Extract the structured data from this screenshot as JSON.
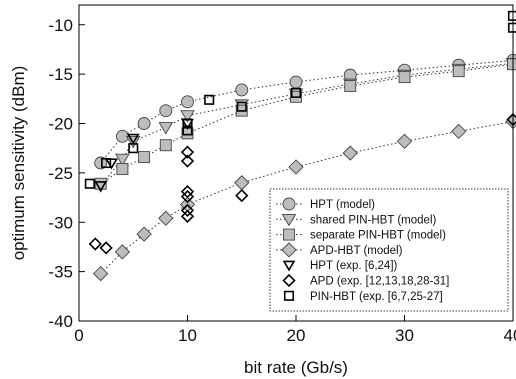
{
  "chart_data": {
    "type": "scatter",
    "xlabel": "bit rate (Gb/s)",
    "ylabel": "optimum sensitivity (dBm)",
    "xlim": [
      0,
      40
    ],
    "ylim": [
      -40,
      -8
    ],
    "x_ticks": [
      0,
      10,
      20,
      30,
      40
    ],
    "y_ticks": [
      -10,
      -15,
      -20,
      -25,
      -30,
      -35,
      -40
    ],
    "grid": false,
    "legend_position": "bottom-right",
    "series": [
      {
        "name": "HPT (model)",
        "marker": "circle",
        "fill": "#bdbdbd",
        "line": "dotted",
        "points": [
          [
            2,
            -24.0
          ],
          [
            4,
            -21.3
          ],
          [
            6,
            -20.0
          ],
          [
            8,
            -18.7
          ],
          [
            10,
            -17.8
          ],
          [
            15,
            -16.6
          ],
          [
            20,
            -15.8
          ],
          [
            25,
            -15.1
          ],
          [
            30,
            -14.6
          ],
          [
            35,
            -14.1
          ],
          [
            40,
            -13.6
          ]
        ]
      },
      {
        "name": "shared PIN-HBT (model)",
        "marker": "triangle-down",
        "fill": "#bdbdbd",
        "line": "dotted",
        "points": [
          [
            2,
            -26.3
          ],
          [
            4,
            -23.6
          ],
          [
            5,
            -21.8
          ],
          [
            8,
            -20.4
          ],
          [
            10,
            -19.2
          ],
          [
            15,
            -18.1
          ],
          [
            20,
            -17.0
          ],
          [
            25,
            -16.0
          ],
          [
            30,
            -15.1
          ],
          [
            35,
            -14.5
          ],
          [
            40,
            -13.9
          ]
        ]
      },
      {
        "name": "separate PIN-HBT (model)",
        "marker": "square",
        "fill": "#bdbdbd",
        "line": "dotted",
        "points": [
          [
            2,
            -26.1
          ],
          [
            4,
            -24.6
          ],
          [
            6,
            -23.4
          ],
          [
            8,
            -22.2
          ],
          [
            10,
            -21.0
          ],
          [
            15,
            -18.7
          ],
          [
            20,
            -17.3
          ],
          [
            25,
            -16.2
          ],
          [
            30,
            -15.3
          ],
          [
            35,
            -14.7
          ],
          [
            40,
            -14.0
          ]
        ]
      },
      {
        "name": "APD-HBT (model)",
        "marker": "diamond",
        "fill": "#bdbdbd",
        "line": "dotted",
        "points": [
          [
            2,
            -35.2
          ],
          [
            4,
            -33.0
          ],
          [
            6,
            -31.2
          ],
          [
            8,
            -29.6
          ],
          [
            10,
            -28.2
          ],
          [
            15,
            -26.0
          ],
          [
            20,
            -24.4
          ],
          [
            25,
            -23.0
          ],
          [
            30,
            -21.8
          ],
          [
            35,
            -20.8
          ],
          [
            40,
            -19.8
          ]
        ]
      },
      {
        "name": "HPT (exp. [6,24])",
        "marker": "triangle-down-open",
        "fill": "none",
        "line": "none",
        "points": [
          [
            2,
            -26.3
          ],
          [
            3,
            -24.0
          ],
          [
            5,
            -21.5
          ],
          [
            10,
            -20.0
          ]
        ]
      },
      {
        "name": "APD (exp. [12,13,18,28-31]",
        "marker": "diamond-open",
        "fill": "none",
        "line": "none",
        "points": [
          [
            1.5,
            -32.2
          ],
          [
            2.5,
            -32.6
          ],
          [
            10,
            -22.9
          ],
          [
            10,
            -23.8
          ],
          [
            10,
            -26.9
          ],
          [
            10,
            -27.4
          ],
          [
            10,
            -28.8
          ],
          [
            10,
            -29.4
          ],
          [
            15,
            -27.3
          ],
          [
            40,
            -19.6
          ]
        ]
      },
      {
        "name": "PIN-HBT (exp. [6,7,25-27]",
        "marker": "square-open",
        "fill": "none",
        "line": "none",
        "points": [
          [
            1,
            -26.1
          ],
          [
            2.5,
            -24.0
          ],
          [
            5,
            -22.5
          ],
          [
            10,
            -20.0
          ],
          [
            10,
            -20.7
          ],
          [
            12,
            -17.6
          ],
          [
            15,
            -18.3
          ],
          [
            20,
            -16.9
          ],
          [
            40,
            -9.1
          ],
          [
            40,
            -10.3
          ]
        ]
      }
    ]
  }
}
